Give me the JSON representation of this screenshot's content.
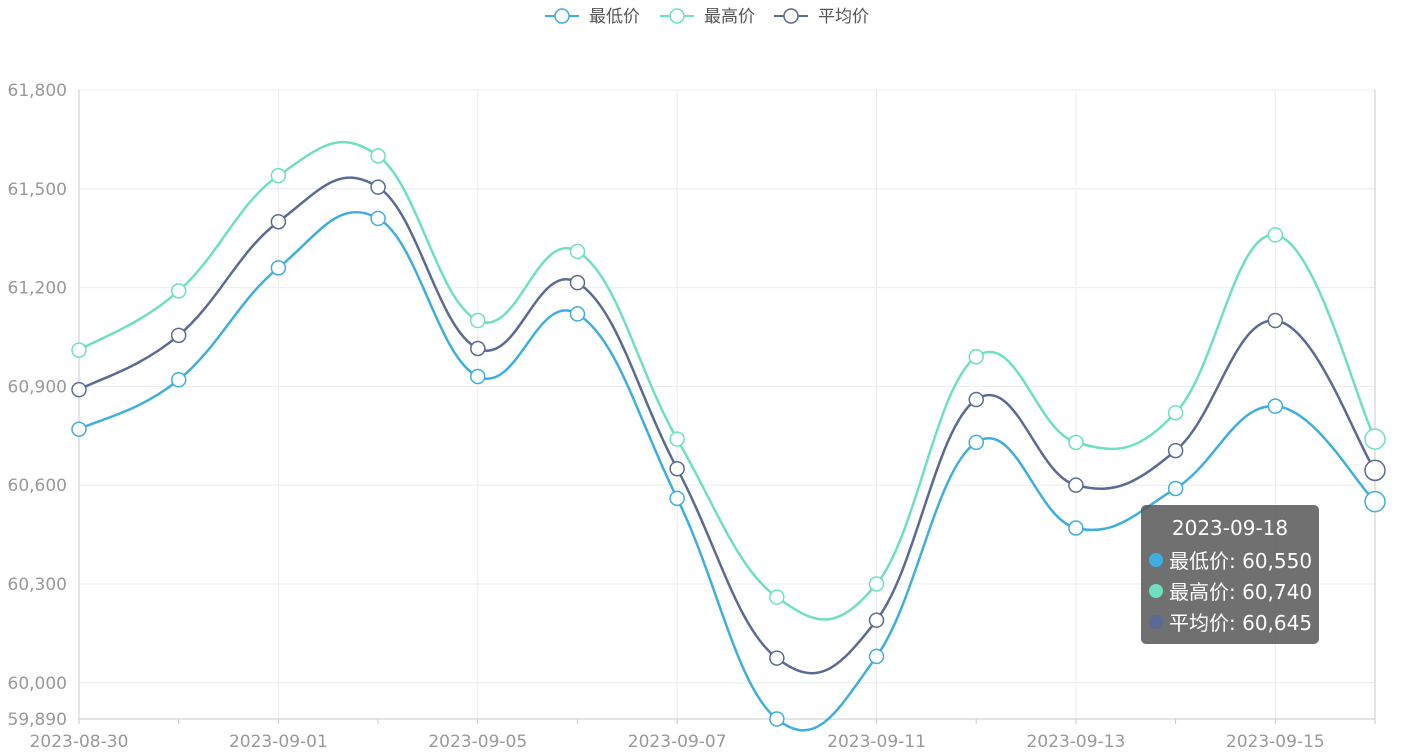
{
  "colors": {
    "low": "#3eaedf",
    "high": "#6ee0c1",
    "avg": "#5a6a94",
    "grid": "#ececec",
    "axis_text": "#999999",
    "axis_line": "#c9c9c9"
  },
  "chart_data": {
    "type": "line",
    "x": [
      "2023-08-30",
      "2023-08-31",
      "2023-09-01",
      "2023-09-02",
      "2023-09-05",
      "2023-09-06",
      "2023-09-07",
      "2023-09-08",
      "2023-09-11",
      "2023-09-12",
      "2023-09-13",
      "2023-09-14",
      "2023-09-15",
      "2023-09-18"
    ],
    "x_tick_labels": [
      "2023-08-30",
      "2023-09-01",
      "2023-09-05",
      "2023-09-07",
      "2023-09-11",
      "2023-09-13",
      "2023-09-15"
    ],
    "series": [
      {
        "name": "最低价",
        "color": "#3eaedf",
        "values": [
          60770,
          60920,
          61260,
          61410,
          60930,
          61120,
          60560,
          59890,
          60080,
          60730,
          60470,
          60590,
          60840,
          60550
        ]
      },
      {
        "name": "最高价",
        "color": "#6ee0c1",
        "values": [
          61010,
          61190,
          61540,
          61600,
          61100,
          61310,
          60740,
          60260,
          60300,
          60990,
          60730,
          60820,
          61360,
          60740
        ]
      },
      {
        "name": "平均价",
        "color": "#5a6a94",
        "values": [
          60890,
          61055,
          61400,
          61505,
          61015,
          61215,
          60650,
          60075,
          60190,
          60860,
          60600,
          60705,
          61100,
          60645
        ]
      }
    ],
    "y_ticks": [
      "59,890",
      "60,000",
      "60,300",
      "60,600",
      "60,900",
      "61,200",
      "61,500",
      "61,800"
    ],
    "ylim": [
      59890,
      61800
    ],
    "grid": true,
    "legend": "top-center",
    "tooltip": {
      "title": "2023-09-18",
      "rows": [
        {
          "label": "最低价: 60,550",
          "color": "#3eaedf"
        },
        {
          "label": "最高价: 60,740",
          "color": "#6ee0c1"
        },
        {
          "label": "平均价: 60,645",
          "color": "#5a6a94"
        }
      ]
    }
  }
}
